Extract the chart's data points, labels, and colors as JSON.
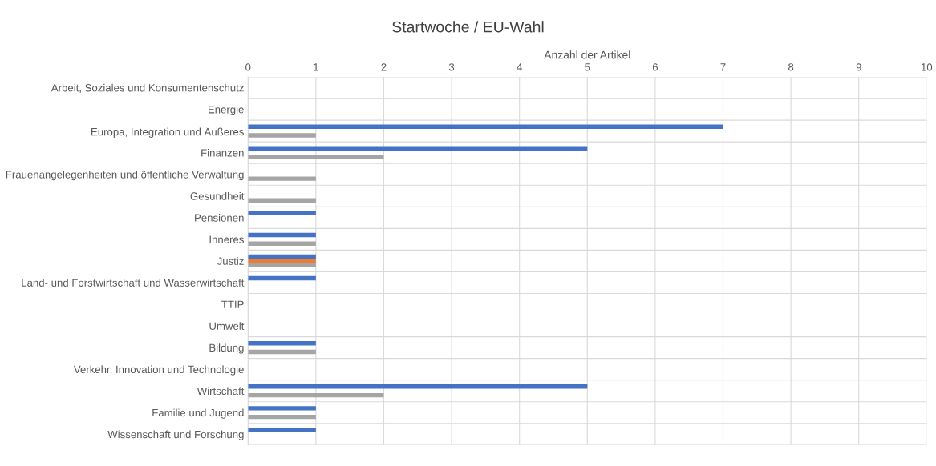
{
  "chart_data": {
    "type": "bar",
    "orientation": "horizontal",
    "title": "Startwoche / EU-Wahl",
    "xlabel": "Anzahl der Artikel",
    "categories": [
      "Arbeit, Soziales und Konsumentenschutz",
      "Energie",
      "Europa, Integration und Äußeres",
      "Finanzen",
      "Frauenangelegenheiten und öffentliche Verwaltung",
      "Gesundheit",
      "Pensionen",
      "Inneres",
      "Justiz",
      "Land- und Forstwirtschaft und Wasserwirtschaft",
      "TTIP",
      "Umwelt",
      "Bildung",
      "Verkehr, Innovation und Technologie",
      "Wirtschaft",
      "Familie und Jugend",
      "Wissenschaft und Forschung"
    ],
    "series": [
      {
        "color": "#4472c4",
        "values": [
          0,
          0,
          7,
          5,
          0,
          0,
          1,
          1,
          1,
          1,
          0,
          0,
          1,
          0,
          5,
          1,
          1
        ]
      },
      {
        "color": "#ed7d31",
        "values": [
          0,
          0,
          0,
          0,
          0,
          0,
          0,
          0,
          1,
          0,
          0,
          0,
          0,
          0,
          0,
          0,
          0
        ]
      },
      {
        "color": "#a5a5a5",
        "values": [
          0,
          0,
          1,
          2,
          1,
          1,
          0,
          1,
          1,
          0,
          0,
          0,
          1,
          0,
          2,
          1,
          0
        ]
      }
    ],
    "xlim": [
      0,
      10
    ],
    "xticks": [
      0,
      1,
      2,
      3,
      4,
      5,
      6,
      7,
      8,
      9,
      10
    ],
    "grid": true
  }
}
